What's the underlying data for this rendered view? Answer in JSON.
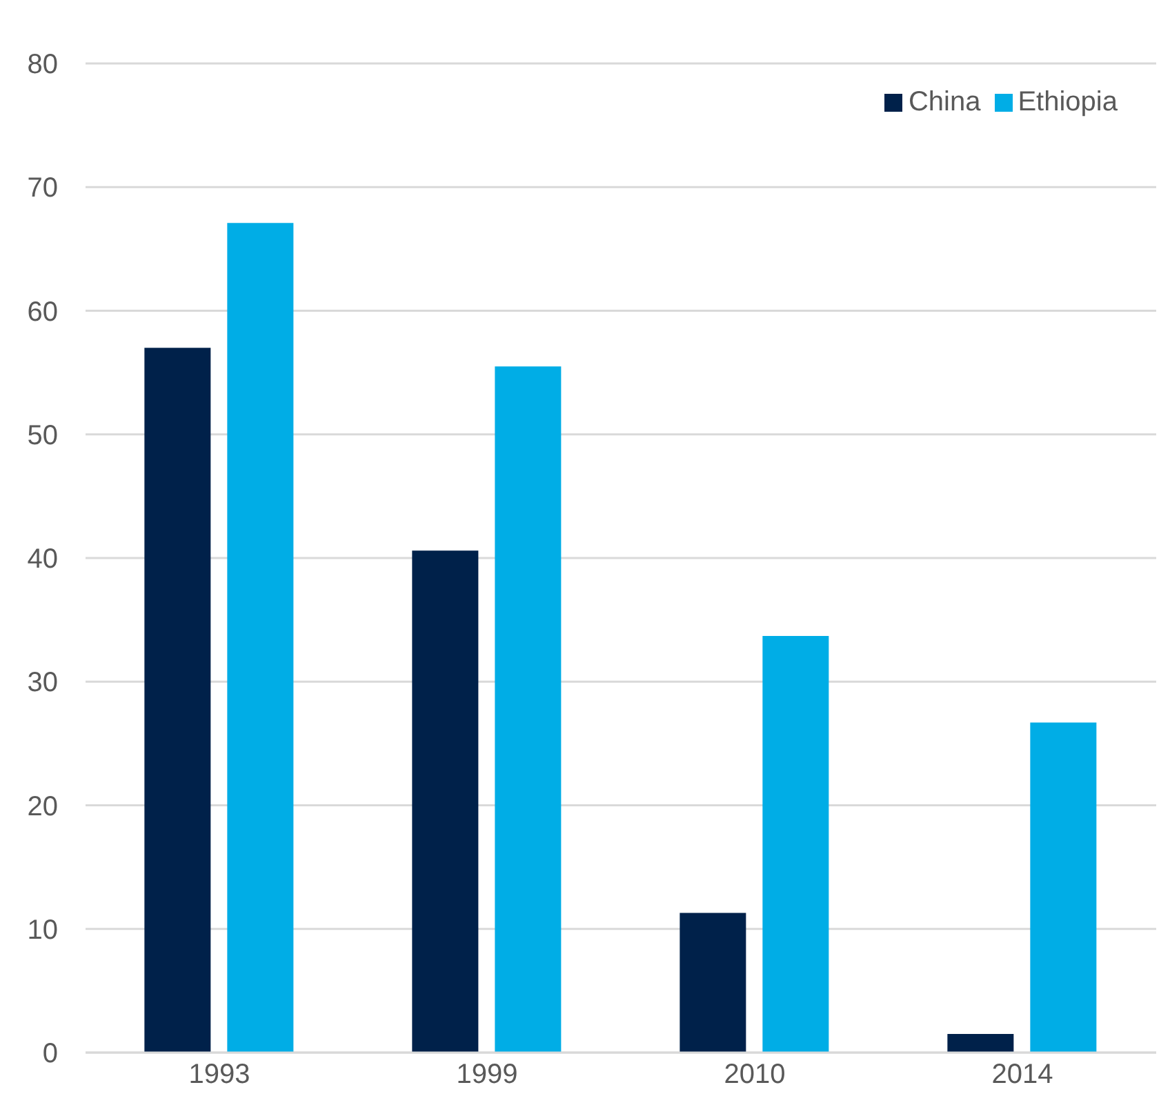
{
  "chart_data": {
    "type": "bar",
    "categories": [
      "1993",
      "1999",
      "2010",
      "2014"
    ],
    "series": [
      {
        "name": "China",
        "color": "#00214a",
        "values": [
          57.0,
          40.6,
          11.3,
          1.5
        ]
      },
      {
        "name": "Ethiopia",
        "color": "#00ade6",
        "values": [
          67.1,
          55.5,
          33.7,
          26.7
        ]
      }
    ],
    "ylim": [
      0,
      80
    ],
    "yticks": [
      0,
      10,
      20,
      30,
      40,
      50,
      60,
      70,
      80
    ],
    "grid": "y",
    "legend": "top right"
  }
}
